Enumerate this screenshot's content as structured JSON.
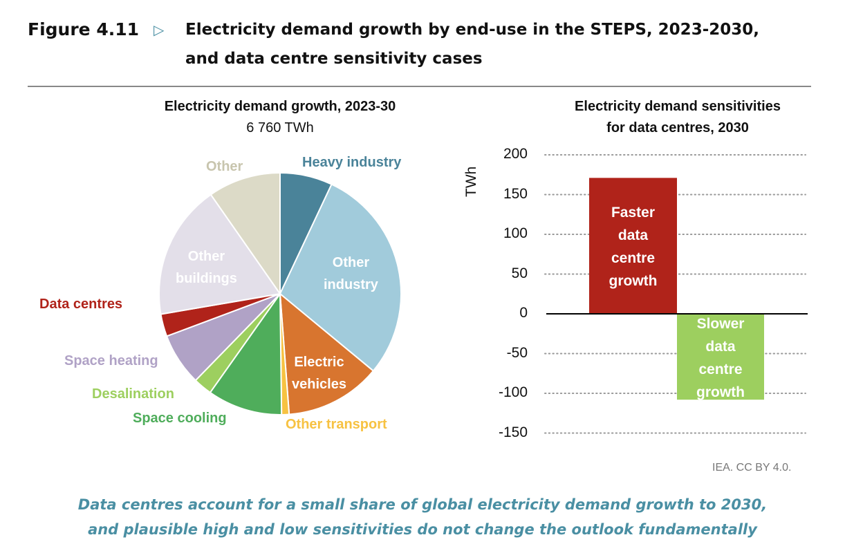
{
  "figure": {
    "number": "Figure 4.11",
    "arrow_icon": "triangle-right-icon",
    "title_line1": "Electricity demand growth by end-use in the STEPS, 2023-2030,",
    "title_line2": "and data centre sensitivity cases"
  },
  "chart_data": [
    {
      "type": "pie",
      "title": "Electricity demand growth, 2023-30",
      "subtitle": "6 760 TWh",
      "unit": "%",
      "slices": [
        {
          "label": "Heavy industry",
          "value": 7,
          "color": "#4a8399",
          "label_color": "#4a8399"
        },
        {
          "label": "Other industry",
          "value": 29,
          "color": "#a1cbdb",
          "label_color": "#ffffff"
        },
        {
          "label": "Electric vehicles",
          "value": 12.8,
          "color": "#d8752f",
          "label_color": "#ffffff"
        },
        {
          "label": "Other transport",
          "value": 1,
          "color": "#f7c242",
          "label_color": "#f7c242"
        },
        {
          "label": "Space cooling",
          "value": 10,
          "color": "#4fad5b",
          "label_color": "#4fad5b"
        },
        {
          "label": "Desalination",
          "value": 2.5,
          "color": "#9dcf5f",
          "label_color": "#9dcf5f"
        },
        {
          "label": "Space heating",
          "value": 7,
          "color": "#b0a2c6",
          "label_color": "#b0a2c6"
        },
        {
          "label": "Data centres",
          "value": 3,
          "color": "#b0231a",
          "label_color": "#b0231a"
        },
        {
          "label": "Other buildings",
          "value": 18,
          "color": "#e3dfe9",
          "label_color": "#ffffff"
        },
        {
          "label": "Other",
          "value": 9.7,
          "color": "#dcdac7",
          "label_color": "#c8c5ae"
        }
      ]
    },
    {
      "type": "bar",
      "title_line1": "Electricity demand sensitivities",
      "title_line2": "for data centres, 2030",
      "ylabel": "TWh",
      "ylim": [
        -150,
        200
      ],
      "yticks": [
        "200",
        "150",
        "100",
        "50",
        "0",
        "-50",
        "-100",
        "-150"
      ],
      "ytick_values": [
        200,
        150,
        100,
        50,
        0,
        -50,
        -100,
        -150
      ],
      "grid": true,
      "bars": [
        {
          "label_lines": [
            "Faster",
            "data",
            "centre",
            "growth"
          ],
          "value": 171,
          "color": "#b0231a"
        },
        {
          "label_lines": [
            "Slower",
            "data",
            "centre",
            "growth"
          ],
          "value": -108,
          "color": "#9dcf5f"
        }
      ]
    }
  ],
  "source": "IEA. CC BY 4.0.",
  "caption_line1": "Data centres account for a small share of global electricity demand growth to 2030,",
  "caption_line2": "and plausible high and low sensitivities do not change the outlook fundamentally"
}
